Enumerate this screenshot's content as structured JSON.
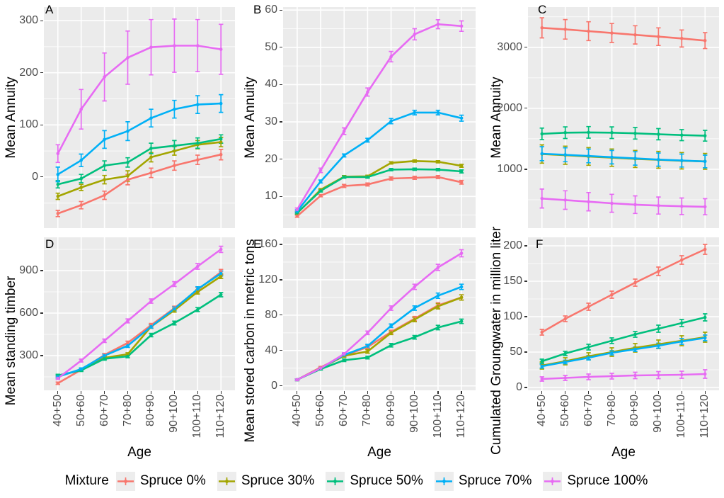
{
  "figure": {
    "panel_bg": "#EBEBEB",
    "grid_color": "#FFFFFF",
    "tick_color": "#333333",
    "tick_label_color": "#4D4D4D"
  },
  "xlabel": "Age",
  "age_categories": [
    "40+50",
    "50+60",
    "60+70",
    "70+80",
    "80+90",
    "90+100",
    "100+110",
    "110+120"
  ],
  "legend": {
    "title": "Mixture",
    "items": [
      {
        "name": "Spruce 0%",
        "color": "#F8766D"
      },
      {
        "name": "Spruce 30%",
        "color": "#A3A500"
      },
      {
        "name": "Spruce 50%",
        "color": "#00BF7D"
      },
      {
        "name": "Spruce 70%",
        "color": "#00B0F6"
      },
      {
        "name": "Spruce 100%",
        "color": "#E76BF3"
      }
    ]
  },
  "chart_data": [
    {
      "type": "line",
      "id": "A",
      "ylabel": "Mean Annuity",
      "ylim": [
        -98,
        326
      ],
      "yticks": [
        0,
        100,
        200,
        300
      ],
      "series": [
        {
          "name": "Spruce 0%",
          "values": [
            -70,
            -54,
            -35,
            -5,
            8,
            22,
            33,
            43
          ],
          "errors": [
            6,
            7,
            8,
            10,
            9,
            9,
            9,
            10
          ]
        },
        {
          "name": "Spruce 30%",
          "values": [
            -37,
            -20,
            -5,
            2,
            38,
            50,
            62,
            67
          ],
          "errors": [
            6,
            6,
            8,
            10,
            9,
            8,
            8,
            9
          ]
        },
        {
          "name": "Spruce 50%",
          "values": [
            -14,
            -3,
            22,
            28,
            55,
            60,
            65,
            73
          ],
          "errors": [
            7,
            8,
            9,
            9,
            10,
            10,
            10,
            8
          ]
        },
        {
          "name": "Spruce 70%",
          "values": [
            5,
            32,
            72,
            88,
            113,
            130,
            139,
            141
          ],
          "errors": [
            14,
            12,
            17,
            18,
            17,
            17,
            17,
            17
          ]
        },
        {
          "name": "Spruce 100%",
          "values": [
            45,
            130,
            192,
            229,
            249,
            252,
            252,
            245
          ],
          "errors": [
            17,
            38,
            46,
            51,
            53,
            51,
            50,
            48
          ]
        }
      ]
    },
    {
      "type": "line",
      "id": "B",
      "ylabel": "Mean Annuity",
      "ylim": [
        1.5,
        60.8
      ],
      "yticks": [
        10,
        20,
        30,
        40,
        50,
        60
      ],
      "series": [
        {
          "name": "Spruce 0%",
          "values": [
            4.7,
            10.2,
            12.8,
            13.2,
            14.8,
            15.0,
            15.2,
            13.8
          ],
          "errors": [
            0.3,
            0.3,
            0.4,
            0.4,
            0.4,
            0.4,
            0.4,
            0.5
          ]
        },
        {
          "name": "Spruce 30%",
          "values": [
            5.5,
            11.8,
            15.3,
            15.4,
            19.0,
            19.5,
            19.3,
            18.2
          ],
          "errors": [
            0.3,
            0.3,
            0.3,
            0.3,
            0.3,
            0.3,
            0.3,
            0.4
          ]
        },
        {
          "name": "Spruce 50%",
          "values": [
            5.6,
            11.5,
            15.2,
            15.2,
            17.2,
            17.3,
            17.2,
            16.7
          ],
          "errors": [
            0.3,
            0.3,
            0.3,
            0.3,
            0.3,
            0.3,
            0.3,
            0.4
          ]
        },
        {
          "name": "Spruce 70%",
          "values": [
            6.0,
            14.0,
            21.0,
            25.1,
            30.2,
            32.5,
            32.5,
            31.0
          ],
          "errors": [
            0.4,
            0.4,
            0.4,
            0.5,
            0.7,
            0.6,
            0.6,
            0.8
          ]
        },
        {
          "name": "Spruce 100%",
          "values": [
            6.5,
            17.0,
            27.5,
            38.0,
            47.5,
            53.5,
            56.2,
            55.7
          ],
          "errors": [
            0.4,
            0.6,
            0.9,
            1.1,
            1.4,
            1.5,
            1.2,
            1.4
          ]
        }
      ]
    },
    {
      "type": "line",
      "id": "C",
      "ylabel": "Mean Annuity",
      "ylim": [
        35,
        3660
      ],
      "yticks": [
        1000,
        2000,
        3000
      ],
      "series": [
        {
          "name": "Spruce 0%",
          "values": [
            3320,
            3295,
            3265,
            3235,
            3205,
            3175,
            3145,
            3110
          ],
          "errors": [
            165,
            160,
            155,
            155,
            150,
            145,
            140,
            130
          ]
        },
        {
          "name": "Spruce 30%",
          "values": [
            1250,
            1230,
            1210,
            1190,
            1170,
            1155,
            1140,
            1130
          ],
          "errors": [
            150,
            148,
            145,
            142,
            140,
            138,
            135,
            130
          ]
        },
        {
          "name": "Spruce 50%",
          "values": [
            1580,
            1600,
            1605,
            1600,
            1590,
            1575,
            1560,
            1550
          ],
          "errors": [
            95,
            95,
            95,
            95,
            95,
            92,
            90,
            88
          ]
        },
        {
          "name": "Spruce 70%",
          "values": [
            1255,
            1238,
            1218,
            1198,
            1178,
            1158,
            1143,
            1128
          ],
          "errors": [
            115,
            114,
            112,
            110,
            110,
            108,
            106,
            104
          ]
        },
        {
          "name": "Spruce 100%",
          "values": [
            520,
            495,
            468,
            442,
            420,
            405,
            393,
            385
          ],
          "errors": [
            155,
            152,
            150,
            147,
            144,
            140,
            136,
            132
          ]
        }
      ]
    },
    {
      "type": "line",
      "id": "D",
      "ylabel": "Mean standing timber",
      "ylim": [
        55,
        1135
      ],
      "yticks": [
        300,
        600,
        900
      ],
      "series": [
        {
          "name": "Spruce 0%",
          "values": [
            105,
            200,
            305,
            390,
            515,
            635,
            765,
            890
          ],
          "errors": [
            8,
            8,
            10,
            12,
            12,
            14,
            16,
            18
          ]
        },
        {
          "name": "Spruce 30%",
          "values": [
            155,
            200,
            285,
            310,
            505,
            620,
            750,
            860
          ],
          "errors": [
            8,
            8,
            10,
            10,
            12,
            13,
            15,
            16
          ]
        },
        {
          "name": "Spruce 50%",
          "values": [
            160,
            196,
            278,
            295,
            445,
            530,
            625,
            730
          ],
          "errors": [
            8,
            8,
            10,
            10,
            12,
            13,
            14,
            15
          ]
        },
        {
          "name": "Spruce 70%",
          "values": [
            150,
            205,
            300,
            370,
            505,
            630,
            770,
            880
          ],
          "errors": [
            8,
            8,
            10,
            12,
            12,
            14,
            16,
            17
          ]
        },
        {
          "name": "Spruce 100%",
          "values": [
            140,
            265,
            405,
            545,
            685,
            805,
            930,
            1050
          ],
          "errors": [
            8,
            10,
            12,
            14,
            15,
            17,
            20,
            22
          ]
        }
      ]
    },
    {
      "type": "line",
      "id": "E",
      "ylabel": "Mean stored carbon in metric tons",
      "ylim": [
        -5,
        168
      ],
      "yticks": [
        0,
        40,
        80,
        120,
        160
      ],
      "series": [
        {
          "name": "Spruce 0%",
          "values": [
            7,
            21,
            34,
            44,
            61,
            76,
            91,
            100
          ],
          "errors": [
            1,
            1,
            1.5,
            2,
            2,
            2.5,
            3,
            3
          ]
        },
        {
          "name": "Spruce 30%",
          "values": [
            7,
            20,
            34,
            39,
            60,
            75,
            90,
            100
          ],
          "errors": [
            1,
            1,
            1.5,
            2,
            2,
            2.5,
            3,
            3
          ]
        },
        {
          "name": "Spruce 50%",
          "values": [
            7,
            19,
            29,
            32,
            46,
            55,
            66,
            73
          ],
          "errors": [
            1,
            1,
            1.5,
            1.5,
            2,
            2,
            2.5,
            2.5
          ]
        },
        {
          "name": "Spruce 70%",
          "values": [
            7,
            20,
            35,
            45,
            68,
            88,
            102,
            112
          ],
          "errors": [
            1,
            1,
            1.5,
            2,
            2,
            2.5,
            3,
            3
          ]
        },
        {
          "name": "Spruce 100%",
          "values": [
            7,
            20,
            36,
            60,
            88,
            112,
            134,
            150
          ],
          "errors": [
            1,
            1,
            1.5,
            2,
            2.5,
            3,
            3.5,
            4
          ]
        }
      ]
    },
    {
      "type": "line",
      "id": "F",
      "ylabel": "Cumulated Groungwater in million liter",
      "ylim": [
        -4,
        212
      ],
      "yticks": [
        0,
        50,
        100,
        150,
        200
      ],
      "series": [
        {
          "name": "Spruce 0%",
          "values": [
            78,
            97,
            114,
            131,
            148,
            164,
            180,
            195
          ],
          "errors": [
            4,
            4,
            5,
            5,
            5,
            6,
            6,
            7
          ]
        },
        {
          "name": "Spruce 30%",
          "values": [
            31,
            37,
            44,
            50,
            56,
            61,
            66,
            71
          ],
          "errors": [
            5,
            5,
            5,
            6,
            6,
            6,
            7,
            7
          ]
        },
        {
          "name": "Spruce 50%",
          "values": [
            37,
            48,
            57,
            66,
            75,
            83,
            91,
            99
          ],
          "errors": [
            3,
            3,
            4,
            4,
            4,
            5,
            5,
            5
          ]
        },
        {
          "name": "Spruce 70%",
          "values": [
            30,
            36,
            42,
            49,
            54,
            59,
            65,
            70
          ],
          "errors": [
            2.5,
            2.5,
            3,
            3,
            3,
            3.5,
            4,
            4
          ]
        },
        {
          "name": "Spruce 100%",
          "values": [
            12,
            13.5,
            15,
            16,
            17,
            17.5,
            18,
            19
          ],
          "errors": [
            3,
            3.5,
            4,
            4,
            4.5,
            5,
            5,
            6
          ]
        }
      ]
    }
  ]
}
